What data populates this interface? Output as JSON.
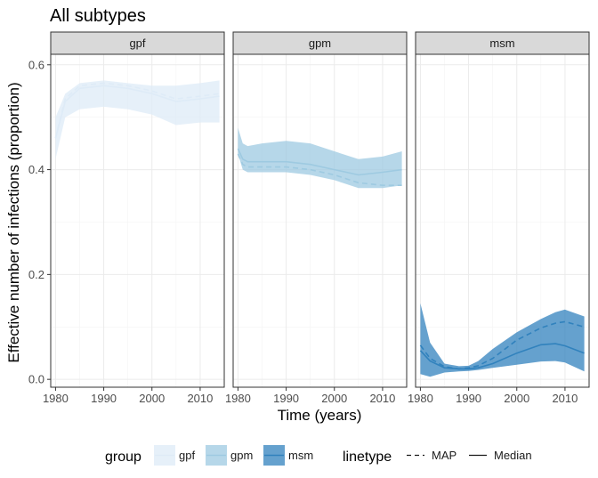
{
  "chart_data": {
    "type": "area",
    "title": "All subtypes",
    "xlabel": "Time (years)",
    "ylabel": "Effective number of infections (proportion)",
    "xlim": [
      1979,
      2015
    ],
    "ylim": [
      -0.015,
      0.62
    ],
    "x_ticks": [
      1980,
      1990,
      2000,
      2010
    ],
    "y_ticks": [
      0.0,
      0.2,
      0.4,
      0.6
    ],
    "y_tick_labels": [
      "0.0",
      "0.2",
      "0.4",
      "0.6"
    ],
    "grid": true,
    "legend_position": "bottom",
    "legends": {
      "group": {
        "title": "group",
        "entries": [
          "gpf",
          "gpm",
          "msm"
        ]
      },
      "linetype": {
        "title": "linetype",
        "entries": [
          "MAP",
          "Median"
        ]
      }
    },
    "colors": {
      "gpf": "#deebf7",
      "gpm": "#9ecae1",
      "msm": "#3182bd"
    },
    "panels": [
      {
        "name": "gpf",
        "x": [
          1980,
          1982,
          1985,
          1990,
          1995,
          2000,
          2005,
          2010,
          2014
        ],
        "lower": [
          0.42,
          0.5,
          0.515,
          0.52,
          0.515,
          0.505,
          0.485,
          0.49,
          0.49
        ],
        "upper": [
          0.5,
          0.545,
          0.565,
          0.57,
          0.565,
          0.56,
          0.56,
          0.565,
          0.57
        ],
        "median": [
          0.46,
          0.53,
          0.555,
          0.56,
          0.555,
          0.545,
          0.53,
          0.535,
          0.54
        ],
        "map": [
          0.46,
          0.535,
          0.56,
          0.565,
          0.56,
          0.55,
          0.535,
          0.54,
          0.545
        ]
      },
      {
        "name": "gpm",
        "x": [
          1980,
          1981,
          1982,
          1985,
          1990,
          1995,
          2000,
          2005,
          2010,
          2014
        ],
        "lower": [
          0.43,
          0.4,
          0.395,
          0.395,
          0.395,
          0.39,
          0.38,
          0.365,
          0.365,
          0.37
        ],
        "upper": [
          0.48,
          0.45,
          0.445,
          0.45,
          0.455,
          0.45,
          0.435,
          0.42,
          0.425,
          0.435
        ],
        "median": [
          0.44,
          0.42,
          0.415,
          0.415,
          0.415,
          0.41,
          0.4,
          0.39,
          0.395,
          0.4
        ],
        "map": [
          0.43,
          0.41,
          0.405,
          0.405,
          0.405,
          0.4,
          0.39,
          0.375,
          0.37,
          0.37
        ]
      },
      {
        "name": "msm",
        "x": [
          1980,
          1982,
          1985,
          1988,
          1990,
          1992,
          1995,
          2000,
          2005,
          2008,
          2010,
          2014
        ],
        "lower": [
          0.01,
          0.005,
          0.013,
          0.015,
          0.016,
          0.018,
          0.022,
          0.028,
          0.034,
          0.035,
          0.032,
          0.015
        ],
        "upper": [
          0.145,
          0.07,
          0.03,
          0.025,
          0.026,
          0.035,
          0.058,
          0.09,
          0.115,
          0.128,
          0.133,
          0.12
        ],
        "median": [
          0.055,
          0.035,
          0.022,
          0.02,
          0.02,
          0.022,
          0.03,
          0.05,
          0.066,
          0.068,
          0.064,
          0.05
        ],
        "map": [
          0.065,
          0.04,
          0.024,
          0.02,
          0.022,
          0.026,
          0.04,
          0.075,
          0.098,
          0.107,
          0.11,
          0.1
        ]
      }
    ]
  }
}
